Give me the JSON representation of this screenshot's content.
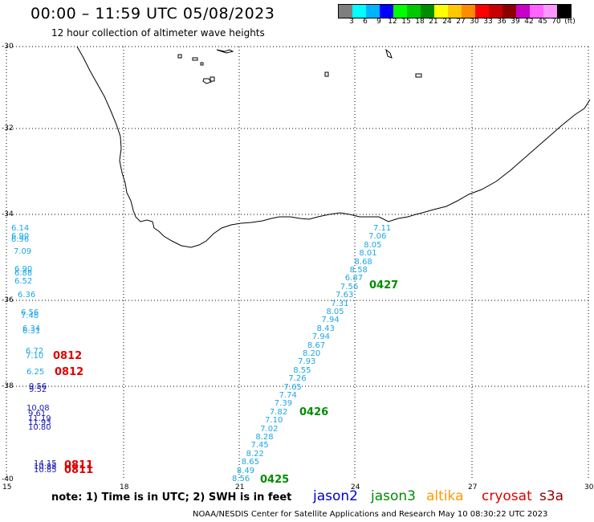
{
  "header": {
    "title": "00:00 – 11:59 UTC 05/08/2023",
    "subtitle": "12 hour collection of altimeter wave heights"
  },
  "scale": {
    "colors": [
      "#7f7f7f",
      "#00ffff",
      "#00b4ff",
      "#0000ff",
      "#00ff00",
      "#00c800",
      "#008c00",
      "#ffff00",
      "#ffc800",
      "#ff8c00",
      "#ff0000",
      "#c80000",
      "#8c0000",
      "#c800c8",
      "#ff64ff",
      "#ff96ff",
      "#000000"
    ],
    "labels": [
      "3",
      "6",
      "9",
      "12",
      "15",
      "18",
      "21",
      "24",
      "27",
      "30",
      "33",
      "36",
      "39",
      "42",
      "45",
      "70"
    ],
    "unit": "(ft)"
  },
  "axes": {
    "lat_labels": [
      "-30",
      "-32",
      "-34",
      "-36",
      "-38",
      "-40"
    ],
    "lon_labels": [
      "15",
      "18",
      "21",
      "24",
      "27",
      "30"
    ]
  },
  "swh_track_cyan": [
    "7.11",
    "7.06",
    "8.05",
    "8.01",
    "8.68",
    "8.58",
    "6.87",
    "7.56",
    "7.63",
    "7.31",
    "8.05",
    "7.94",
    "8.43",
    "7.94",
    "8.67",
    "8.20",
    "7.93",
    "8.55",
    "7.26",
    "7.65",
    "7.74",
    "7.39",
    "7.82",
    "7.10",
    "7.02",
    "8.28",
    "7.45",
    "8.22",
    "8.65",
    "8.49",
    "8.56"
  ],
  "swh_west_cyan": [
    "6.14",
    "6.90",
    "6.96",
    "7.09",
    "6.90",
    "6.88",
    "6.52",
    "6.36",
    "6.56",
    "7.48",
    "6.34",
    "6.31",
    "6.72",
    "7.10",
    "6.25"
  ],
  "swh_west_blue": [
    "9.56",
    "9.52",
    "10.08",
    "9.61",
    "11.19",
    "11.93",
    "10.80",
    "14.15",
    "10.88",
    "10.85"
  ],
  "passes_green": [
    "0427",
    "0426",
    "0425"
  ],
  "passes_red": [
    "0812",
    "0812",
    "0811",
    "0811"
  ],
  "note": "note: 1) Time is in UTC; 2) SWH is in feet",
  "satellites": [
    {
      "name": "jason2",
      "color": "#0000cc"
    },
    {
      "name": "jason3",
      "color": "#008c00"
    },
    {
      "name": "altika",
      "color": "#ff9900"
    },
    {
      "name": "cryosat",
      "color": "#e00000"
    },
    {
      "name": "s3a",
      "color": "#8c0000"
    }
  ],
  "footer": "NOAA/NESDIS Center for Satellite Applications and Research   May 10 08:30:22 UTC 2023"
}
